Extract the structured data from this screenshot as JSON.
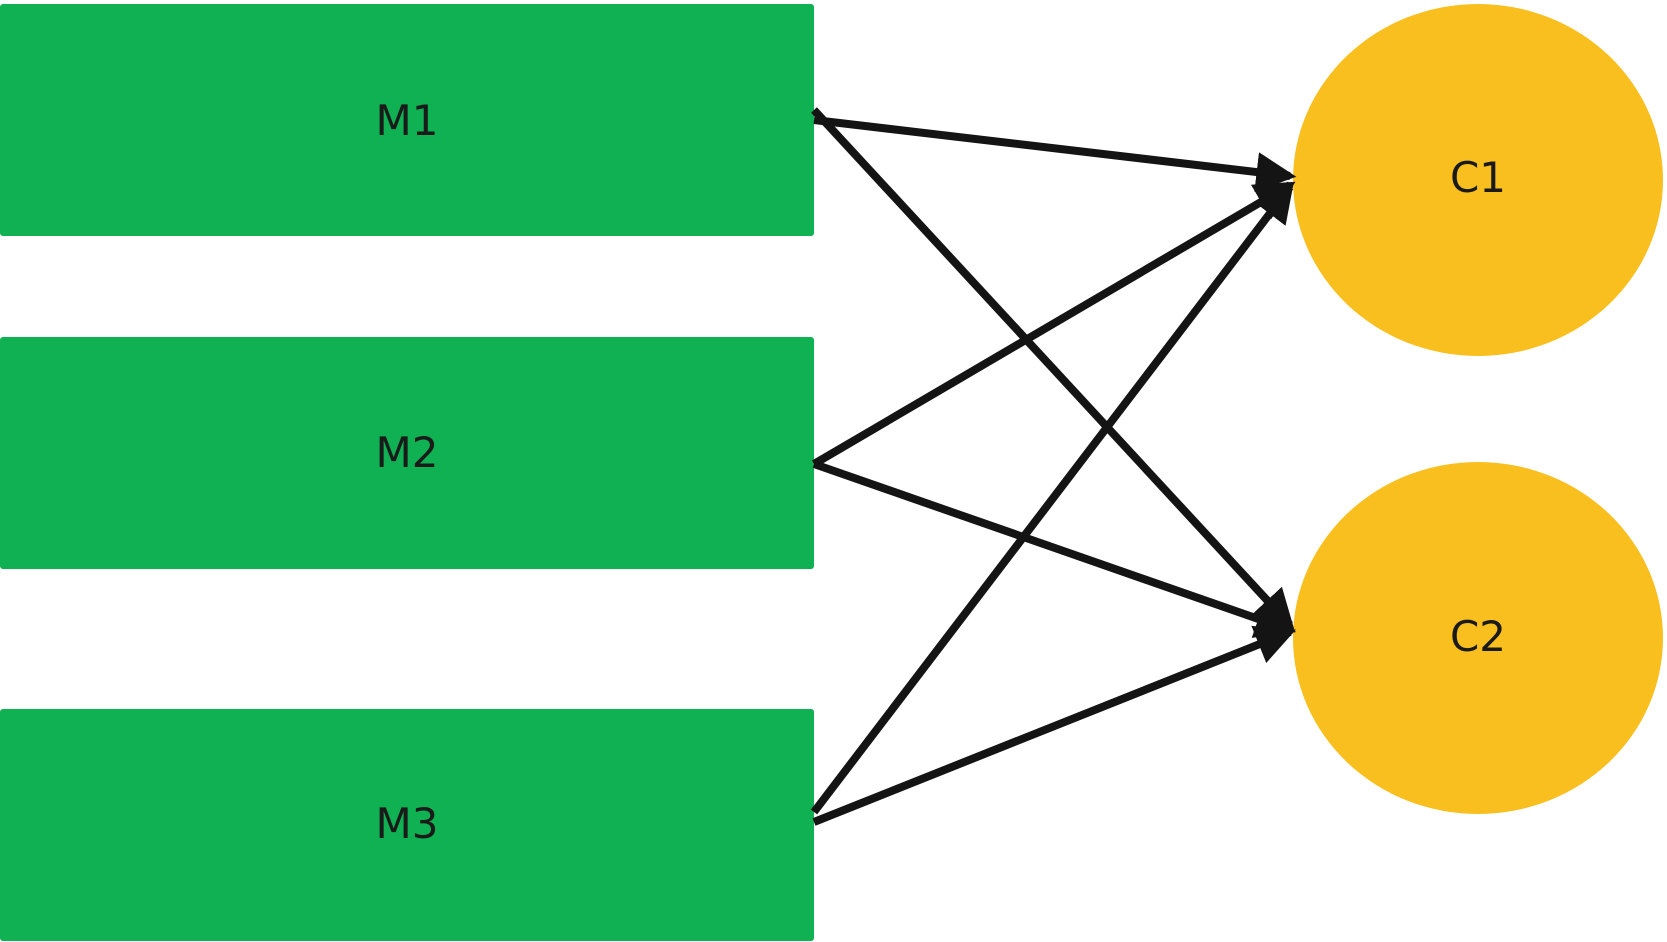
{
  "colors": {
    "source_fill": "#0fb153",
    "target_fill": "#f8bf1f",
    "edge": "#141414",
    "label": "#1a1a1a"
  },
  "nodes": {
    "sources": [
      {
        "id": "M1",
        "label": "M1"
      },
      {
        "id": "M2",
        "label": "M2"
      },
      {
        "id": "M3",
        "label": "M3"
      }
    ],
    "targets": [
      {
        "id": "C1",
        "label": "C1"
      },
      {
        "id": "C2",
        "label": "C2"
      }
    ]
  },
  "edges": [
    {
      "from": "M1",
      "to": "C1"
    },
    {
      "from": "M1",
      "to": "C2"
    },
    {
      "from": "M2",
      "to": "C1"
    },
    {
      "from": "M2",
      "to": "C2"
    },
    {
      "from": "M3",
      "to": "C1"
    },
    {
      "from": "M3",
      "to": "C2"
    }
  ]
}
